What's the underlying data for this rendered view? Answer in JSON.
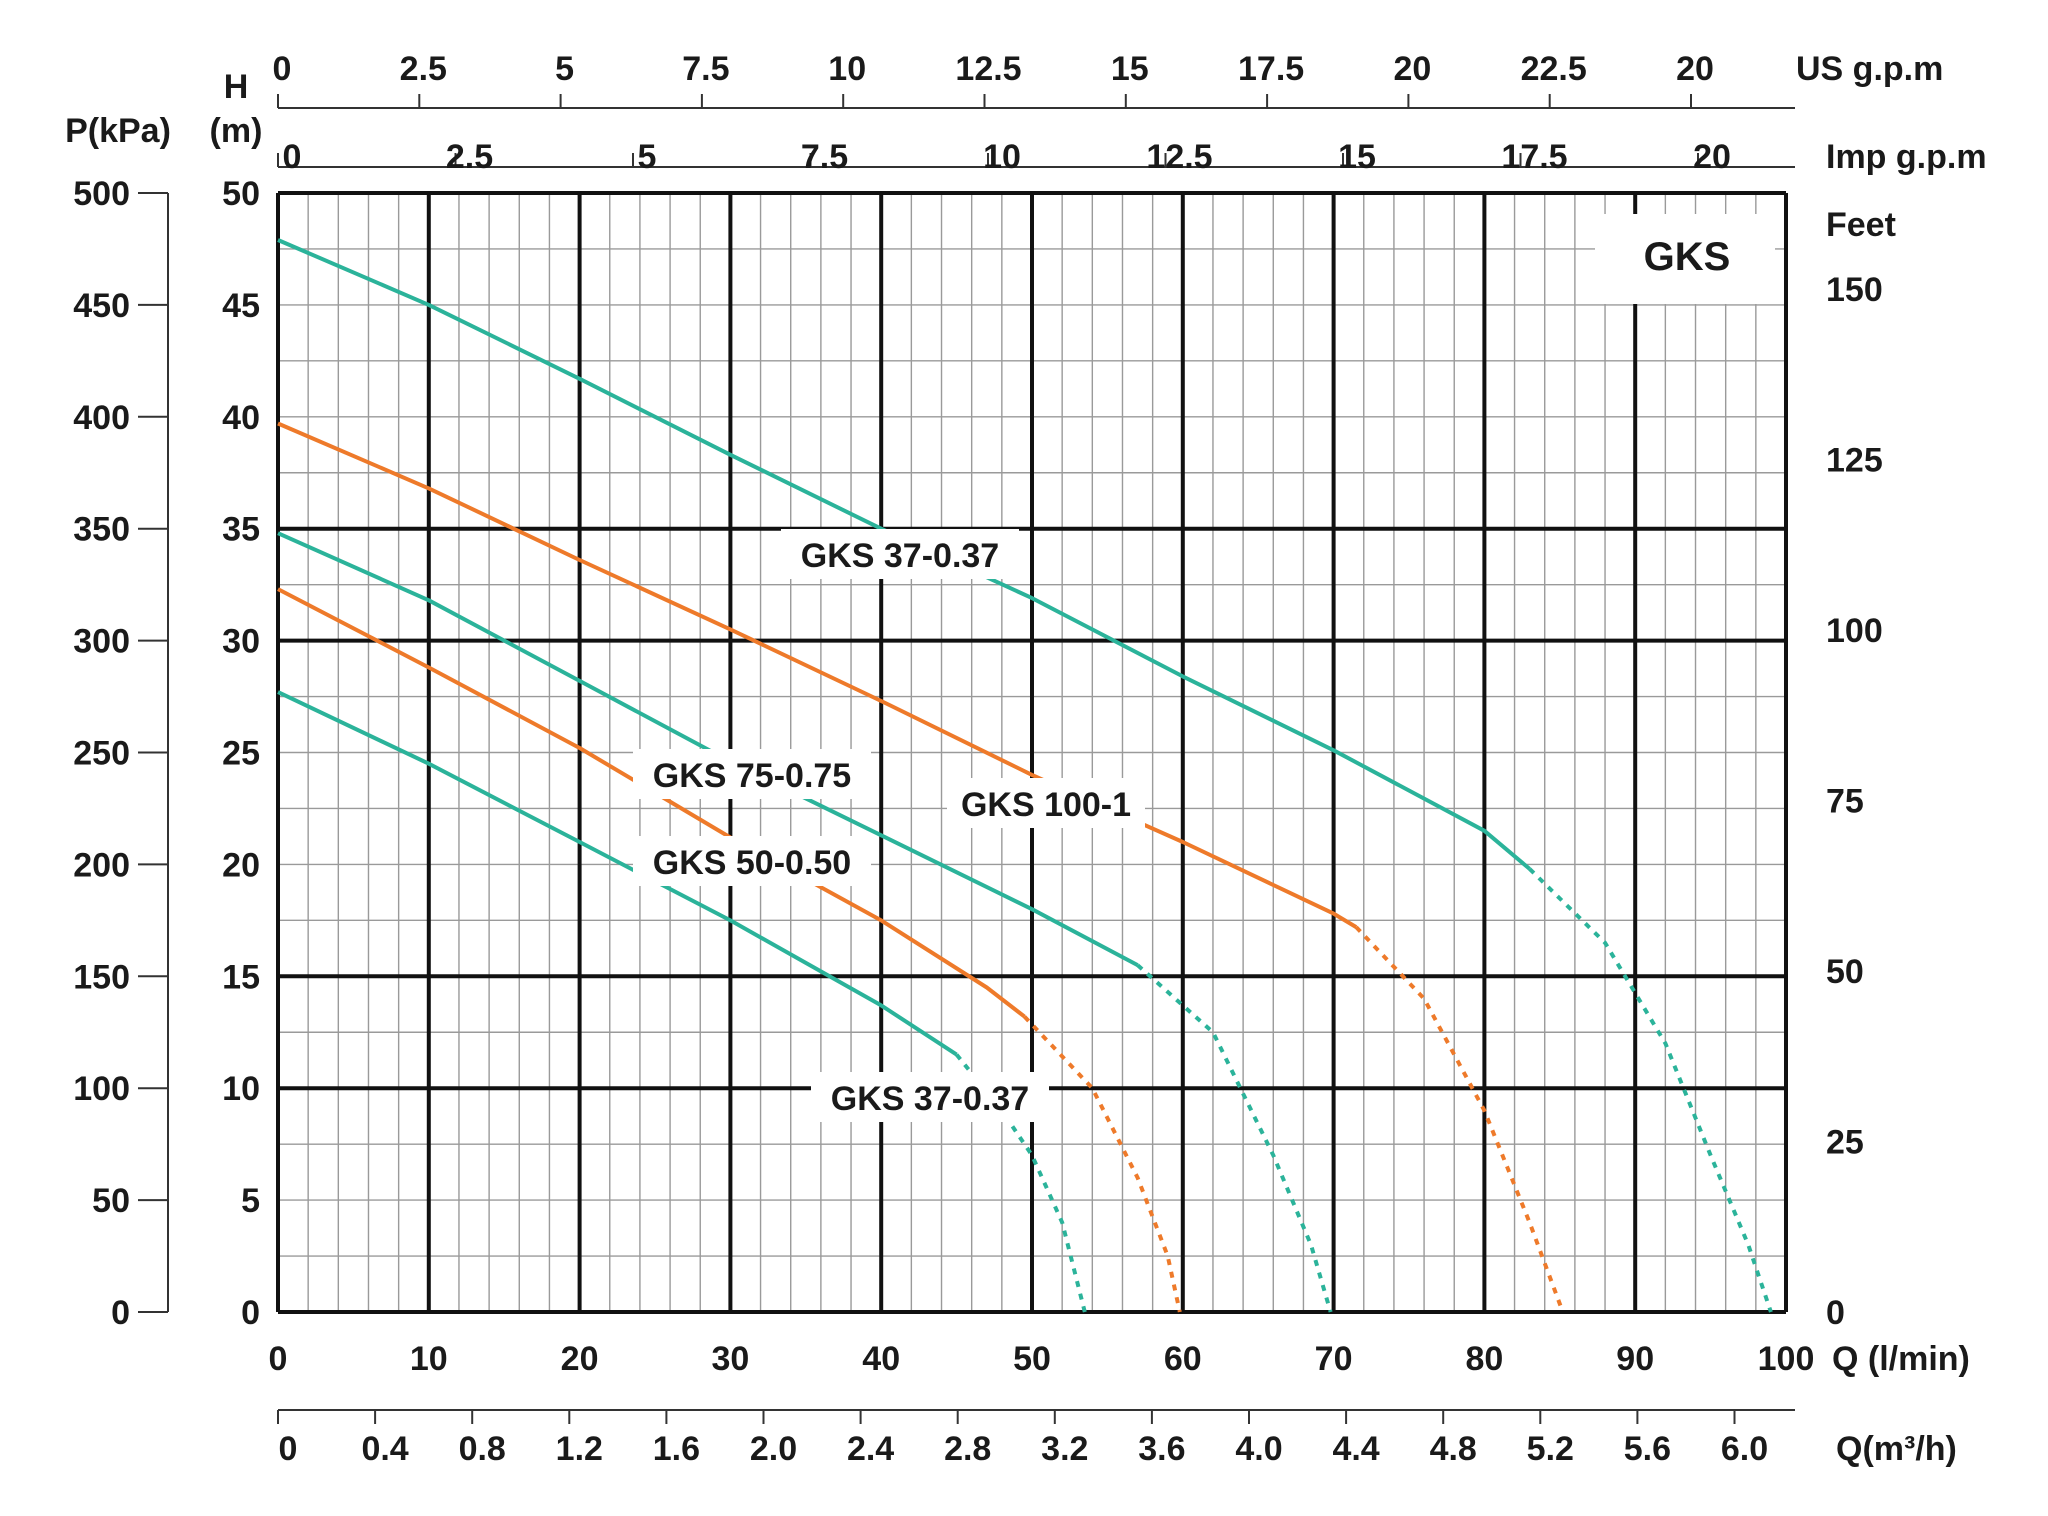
{
  "chart_data": {
    "type": "line",
    "title": "GKS",
    "x": [
      0,
      10,
      20,
      30,
      40,
      50,
      60,
      70,
      80,
      90,
      100
    ],
    "xlabel": "Q (l/min)",
    "xlim": [
      0,
      100
    ],
    "ylabel": "H\n(m)",
    "ylim": [
      0,
      50
    ],
    "grid": true,
    "axes": {
      "main_x": {
        "label": "Q (l/min)",
        "ticks": [
          "0",
          "10",
          "20",
          "30",
          "40",
          "50",
          "60",
          "70",
          "80",
          "90",
          "100"
        ]
      },
      "m3h": {
        "label": "Q(m³/h)",
        "ticks": [
          "0",
          "0.4",
          "0.8",
          "1.2",
          "1.6",
          "2.0",
          "2.4",
          "2.8",
          "3.2",
          "3.6",
          "4.0",
          "4.4",
          "4.8",
          "5.2",
          "5.6",
          "6.0"
        ]
      },
      "us_gpm": {
        "label": "US  g.p.m",
        "ticks": [
          "0",
          "2.5",
          "5",
          "7.5",
          "10",
          "12.5",
          "15",
          "17.5",
          "20",
          "22.5",
          "20"
        ]
      },
      "imp_gpm": {
        "label": "Imp  g.p.m",
        "ticks": [
          "0",
          "2.5",
          "5",
          "7.5",
          "10",
          "12.5",
          "15",
          "17.5",
          "20"
        ]
      },
      "head_m": {
        "label_top": "H",
        "label_bottom": "(m)",
        "ticks": [
          "0",
          "5",
          "10",
          "15",
          "20",
          "25",
          "30",
          "35",
          "40",
          "45",
          "50"
        ]
      },
      "pressure": {
        "label": "P(kPa)",
        "ticks": [
          "0",
          "50",
          "100",
          "150",
          "200",
          "250",
          "300",
          "350",
          "400",
          "450",
          "500"
        ]
      },
      "feet": {
        "label": "Feet",
        "ticks": [
          "0",
          "25",
          "50",
          "75",
          "100",
          "125",
          "150"
        ]
      }
    },
    "series": [
      {
        "label": "GKS 37-0.37",
        "color": "#2bb39a",
        "solid": [
          [
            0,
            27.7
          ],
          [
            10,
            24.5
          ],
          [
            20,
            21
          ],
          [
            30,
            17.5
          ],
          [
            40,
            13.7
          ],
          [
            45,
            11.5
          ]
        ],
        "dashed": [
          [
            45,
            11.5
          ],
          [
            48,
            9
          ],
          [
            50,
            7
          ],
          [
            52,
            4
          ],
          [
            53.5,
            0
          ]
        ]
      },
      {
        "label": "GKS 50-0.50",
        "color": "#ee7a2a",
        "solid": [
          [
            0,
            32.3
          ],
          [
            10,
            28.8
          ],
          [
            20,
            25.2
          ],
          [
            30,
            21.2
          ],
          [
            40,
            17.5
          ],
          [
            47,
            14.5
          ],
          [
            49.5,
            13.2
          ]
        ],
        "dashed": [
          [
            49.5,
            13.2
          ],
          [
            54,
            10
          ],
          [
            57,
            6
          ],
          [
            59,
            2.5
          ],
          [
            59.8,
            0
          ]
        ]
      },
      {
        "label": "GKS 75-0.75",
        "color": "#2bb39a",
        "solid": [
          [
            0,
            34.8
          ],
          [
            10,
            31.8
          ],
          [
            20,
            28.2
          ],
          [
            30,
            24.6
          ],
          [
            40,
            21.3
          ],
          [
            50,
            18
          ],
          [
            57,
            15.5
          ]
        ],
        "dashed": [
          [
            57,
            15.5
          ],
          [
            62,
            12.5
          ],
          [
            66,
            7
          ],
          [
            68.5,
            3
          ],
          [
            69.8,
            0
          ]
        ]
      },
      {
        "label": "GKS 100-1",
        "color": "#ee7a2a",
        "solid": [
          [
            0,
            39.7
          ],
          [
            10,
            36.8
          ],
          [
            20,
            33.6
          ],
          [
            30,
            30.5
          ],
          [
            40,
            27.3
          ],
          [
            50,
            24
          ],
          [
            60,
            21
          ],
          [
            70,
            17.8
          ],
          [
            71.5,
            17.2
          ]
        ],
        "dashed": [
          [
            71.5,
            17.2
          ],
          [
            76,
            14
          ],
          [
            80,
            9
          ],
          [
            83,
            4
          ],
          [
            85.2,
            0
          ]
        ]
      },
      {
        "label": "GKS 37-0.37",
        "color": "#2bb39a",
        "solid": [
          [
            0,
            47.9
          ],
          [
            10,
            45
          ],
          [
            20,
            41.7
          ],
          [
            30,
            38.3
          ],
          [
            40,
            35
          ],
          [
            50,
            31.9
          ],
          [
            60,
            28.4
          ],
          [
            70,
            25.1
          ],
          [
            80,
            21.5
          ],
          [
            83,
            19.8
          ]
        ],
        "dashed": [
          [
            83,
            19.8
          ],
          [
            88,
            16.5
          ],
          [
            92,
            12
          ],
          [
            95,
            7
          ],
          [
            97.5,
            3
          ],
          [
            99,
            0
          ]
        ]
      }
    ]
  }
}
